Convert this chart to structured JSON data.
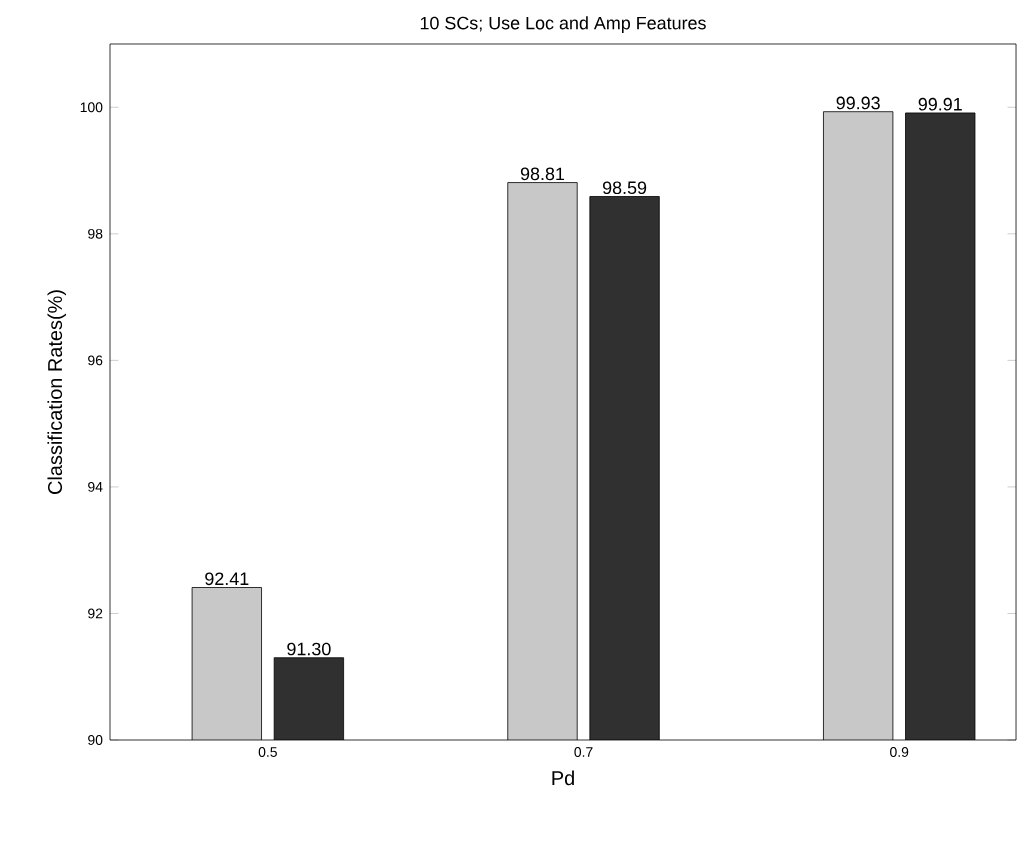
{
  "chart_data": {
    "type": "bar",
    "title": "10 SCs; Use Loc and Amp Features",
    "xlabel": "Pd",
    "ylabel": "Classification Rates(%)",
    "categories": [
      "0.5",
      "0.7",
      "0.9"
    ],
    "series": [
      {
        "color": "#c8c8c8",
        "values": [
          92.41,
          98.81,
          99.93
        ],
        "value_labels": [
          "92.41",
          "98.81",
          "99.93"
        ]
      },
      {
        "color": "#303030",
        "values": [
          91.3,
          98.59,
          99.91
        ],
        "value_labels": [
          "91.30",
          "98.59",
          "99.91"
        ]
      }
    ],
    "ylim": [
      90,
      101
    ],
    "yticks": [
      90,
      92,
      94,
      96,
      98,
      100
    ],
    "legend": false,
    "grid": false
  }
}
